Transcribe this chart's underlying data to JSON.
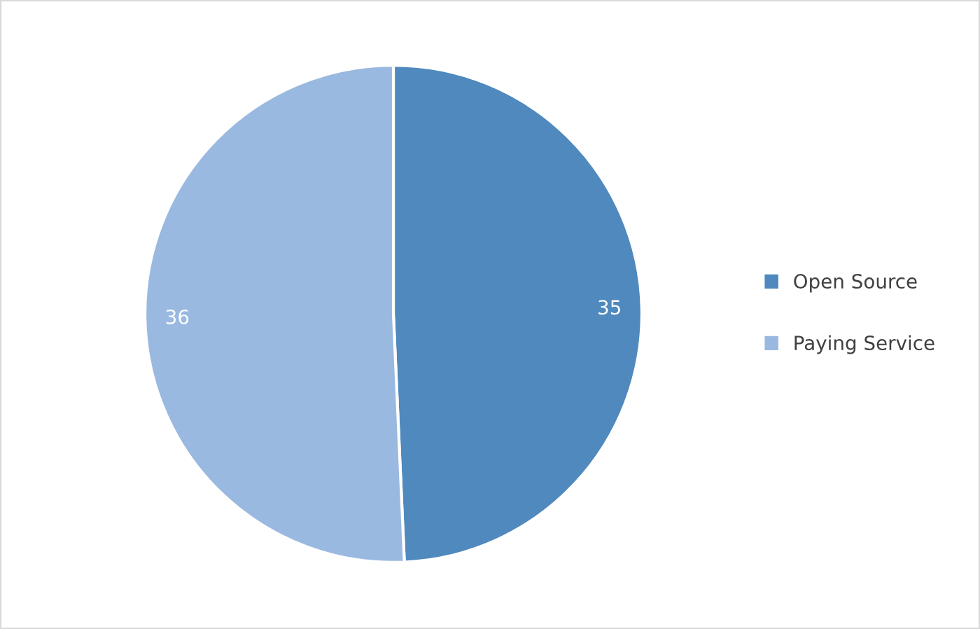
{
  "chart_data": {
    "type": "pie",
    "categories": [
      "Open Source",
      "Paying Service"
    ],
    "values": [
      35,
      36
    ],
    "colors": [
      "#4f89bd",
      "#9ab9e0"
    ],
    "data_labels": true,
    "legend": "right"
  }
}
